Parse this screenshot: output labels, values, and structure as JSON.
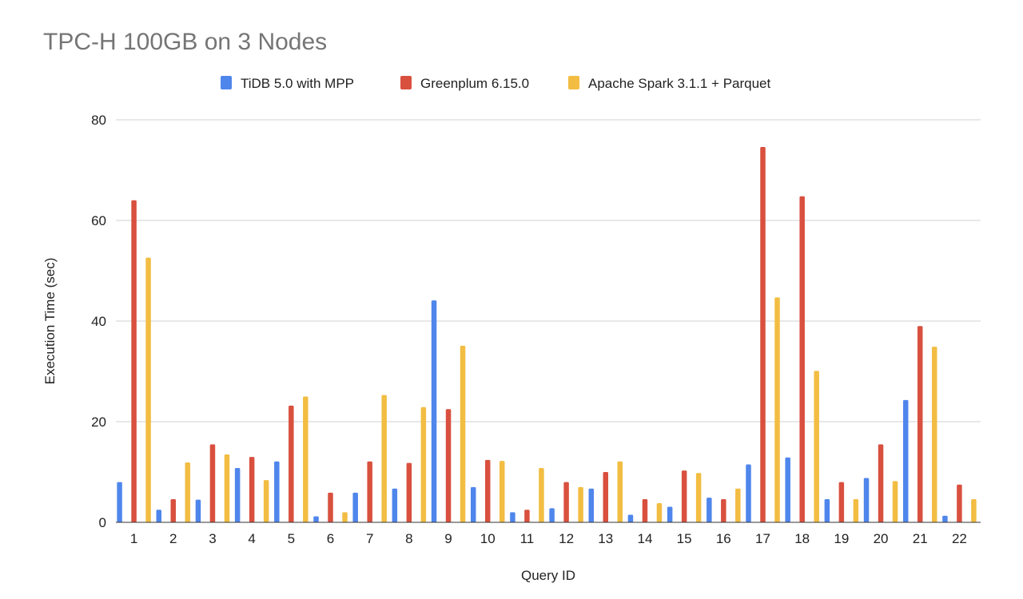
{
  "chart_data": {
    "type": "bar",
    "title": "TPC-H 100GB on 3 Nodes",
    "xlabel": "Query ID",
    "ylabel": "Execution Time (sec)",
    "ylim": [
      0,
      80
    ],
    "yticks": [
      "0",
      "20",
      "40",
      "60",
      "80"
    ],
    "grid": true,
    "legend_position": "top-center",
    "categories": [
      "1",
      "2",
      "3",
      "4",
      "5",
      "6",
      "7",
      "8",
      "9",
      "10",
      "11",
      "12",
      "13",
      "14",
      "15",
      "16",
      "17",
      "18",
      "19",
      "20",
      "21",
      "22"
    ],
    "series": [
      {
        "name": "TiDB 5.0 with MPP",
        "color": "#4f86ec",
        "values": [
          8.0,
          2.5,
          4.5,
          10.8,
          12.1,
          1.2,
          5.9,
          6.7,
          44.1,
          7.0,
          2.0,
          2.8,
          6.7,
          1.5,
          3.1,
          4.9,
          11.5,
          12.9,
          4.6,
          8.8,
          24.3,
          1.3
        ]
      },
      {
        "name": "Greenplum 6.15.0",
        "color": "#d9503f",
        "values": [
          64.0,
          4.6,
          15.5,
          13.0,
          23.2,
          5.9,
          12.1,
          11.8,
          22.5,
          12.4,
          2.5,
          8.0,
          10.0,
          4.6,
          10.3,
          4.6,
          74.6,
          64.8,
          8.0,
          15.5,
          39.0,
          7.5
        ]
      },
      {
        "name": "Apache Spark 3.1.1 + Parquet",
        "color": "#f2bd42",
        "values": [
          52.6,
          11.9,
          13.5,
          8.4,
          25.0,
          2.0,
          25.3,
          22.9,
          35.1,
          12.2,
          10.8,
          7.0,
          12.1,
          3.8,
          9.8,
          6.7,
          44.7,
          30.1,
          4.6,
          8.2,
          34.9,
          4.6
        ]
      }
    ]
  }
}
